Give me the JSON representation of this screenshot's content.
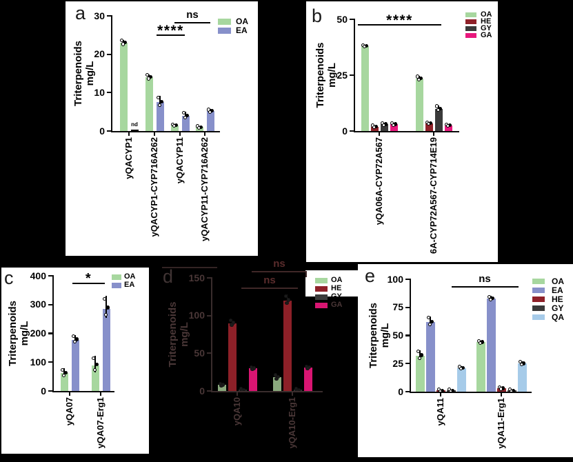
{
  "figure": {
    "background": "#000000",
    "panel_background": "#ffffff"
  },
  "series_colors": {
    "OA": "#a7d79f",
    "EA": "#8790ca",
    "HE": "#8f2129",
    "GY": "#3a3a3a",
    "GA": "#e8187d",
    "QA": "#a6cbe9"
  },
  "dim_theme": {
    "bar": {
      "OA": "#8aa97d",
      "HE": "#8d2028",
      "GY": "#2f2f2f",
      "GA": "#d91572"
    },
    "text": "#4a3737",
    "axis": "#3a2d2d",
    "sig_text": "#5a2c2c",
    "sig_line": "#402828",
    "err": "#1c1c1c",
    "dots": "#141414",
    "letter": "#403434",
    "extra": "#332424",
    "legend_patch": "#ffffff"
  },
  "chart_data": [
    {
      "type": "bar",
      "panel": "a",
      "panel_label": "a",
      "ylabel": "Triterpenoids mg/L",
      "ylabel_lines": [
        "Triterpenoids",
        "mg/L"
      ],
      "ylim": [
        0,
        30
      ],
      "yticks": [
        0,
        10,
        20,
        30
      ],
      "categories": [
        "yQACYP1",
        "yQACYP1-CYP716A262",
        "yQACYP11",
        "yQACYP11-CYP716A262"
      ],
      "series": [
        {
          "name": "OA",
          "values": [
            23,
            14,
            1.5,
            1
          ],
          "errors": [
            0.8,
            0.8,
            0.3,
            0.2
          ]
        },
        {
          "name": "EA",
          "values": [
            null,
            7.5,
            4,
            5.2
          ],
          "errors": [
            null,
            1.7,
            1,
            0.5
          ]
        }
      ],
      "legend": [
        "OA",
        "EA"
      ],
      "annotations": [
        {
          "text": "****"
        },
        {
          "text": "ns"
        }
      ],
      "note": {
        "text": "nd",
        "category": "yQACYP1",
        "series": "EA"
      }
    },
    {
      "type": "bar",
      "panel": "b",
      "panel_label": "b",
      "ylabel": "Triterpenoids mg/L",
      "ylabel_lines": [
        "Triterpenoids",
        "mg/L"
      ],
      "ylim": [
        0,
        50
      ],
      "yticks": [
        0,
        25,
        50
      ],
      "categories": [
        "yQA06A-CYP72A567",
        "6A-CYP72A567-CYP714E19"
      ],
      "series": [
        {
          "name": "OA",
          "values": [
            38,
            23.5
          ],
          "errors": [
            0.5,
            1.2
          ]
        },
        {
          "name": "HE",
          "values": [
            2,
            3.5
          ],
          "errors": [
            0.4,
            0.5
          ]
        },
        {
          "name": "GY",
          "values": [
            3,
            10
          ],
          "errors": [
            0.5,
            1.5
          ]
        },
        {
          "name": "GA",
          "values": [
            3,
            2.5
          ],
          "errors": [
            0.5,
            0.6
          ]
        }
      ],
      "legend": [
        "OA",
        "HE",
        "GY",
        "GA"
      ],
      "annotations": [
        {
          "text": "****"
        }
      ]
    },
    {
      "type": "bar",
      "panel": "c",
      "panel_label": "c",
      "ylabel": "Triterpenoids mg/L",
      "ylabel_lines": [
        "Triterpenoids",
        "mg/L"
      ],
      "ylim": [
        0,
        400
      ],
      "yticks": [
        0,
        100,
        200,
        300,
        400
      ],
      "categories": [
        "yQA07",
        "yQA07-Erg1"
      ],
      "series": [
        {
          "name": "OA",
          "values": [
            62,
            88
          ],
          "errors": [
            16,
            34
          ]
        },
        {
          "name": "EA",
          "values": [
            178,
            285
          ],
          "errors": [
            16,
            46
          ]
        }
      ],
      "legend": [
        "OA",
        "EA"
      ],
      "annotations": [
        {
          "text": "*"
        }
      ]
    },
    {
      "type": "bar",
      "panel": "d",
      "panel_label": "d",
      "dimmed": true,
      "ylabel": "Triterpenoids mg/L",
      "ylabel_lines": [
        "Triterpenoids",
        "mg/L"
      ],
      "ylim": [
        0,
        150
      ],
      "yticks": [
        0,
        50,
        100,
        150
      ],
      "categories": [
        "yQA10",
        "yQA10-Erg1"
      ],
      "series": [
        {
          "name": "OA",
          "values": [
            8,
            18
          ],
          "errors": [
            2,
            4
          ]
        },
        {
          "name": "HE",
          "values": [
            90,
            120
          ],
          "errors": [
            5,
            8
          ]
        },
        {
          "name": "GY",
          "values": [
            1.5,
            1.5
          ],
          "errors": [
            0.4,
            0.4
          ]
        },
        {
          "name": "GA",
          "values": [
            30,
            31
          ],
          "errors": [
            2,
            2
          ]
        }
      ],
      "legend": [
        "OA",
        "HE",
        "GY",
        "GA"
      ],
      "annotations": [
        {
          "text": "ns"
        },
        {
          "text": "ns"
        }
      ]
    },
    {
      "type": "bar",
      "panel": "e",
      "panel_label": "e",
      "ylabel": "Triterpenoids mg/L",
      "ylabel_lines": [
        "Triterpenoids",
        "mg/L"
      ],
      "ylim": [
        0,
        100
      ],
      "yticks": [
        0,
        25,
        50,
        75,
        100
      ],
      "categories": [
        "yQA11",
        "yQA11-Erg1"
      ],
      "series": [
        {
          "name": "OA",
          "values": [
            32,
            44
          ],
          "errors": [
            5,
            1.5
          ]
        },
        {
          "name": "EA",
          "values": [
            62,
            83
          ],
          "errors": [
            5,
            2
          ]
        },
        {
          "name": "HE",
          "values": [
            1,
            3
          ],
          "errors": [
            0.4,
            0.8
          ]
        },
        {
          "name": "GY",
          "values": [
            1,
            1
          ],
          "errors": [
            0.3,
            0.3
          ]
        },
        {
          "name": "QA",
          "values": [
            21,
            25
          ],
          "errors": [
            1.5,
            2
          ]
        }
      ],
      "legend": [
        "OA",
        "EA",
        "HE",
        "GY",
        "QA"
      ],
      "annotations": [
        {
          "text": "ns"
        }
      ]
    }
  ]
}
